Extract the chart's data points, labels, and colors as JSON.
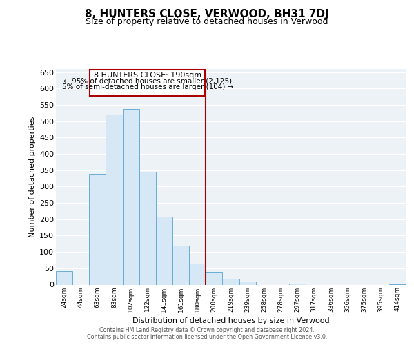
{
  "title": "8, HUNTERS CLOSE, VERWOOD, BH31 7DJ",
  "subtitle": "Size of property relative to detached houses in Verwood",
  "xlabel": "Distribution of detached houses by size in Verwood",
  "ylabel": "Number of detached properties",
  "bar_labels": [
    "24sqm",
    "44sqm",
    "63sqm",
    "83sqm",
    "102sqm",
    "122sqm",
    "141sqm",
    "161sqm",
    "180sqm",
    "200sqm",
    "219sqm",
    "239sqm",
    "258sqm",
    "278sqm",
    "297sqm",
    "317sqm",
    "336sqm",
    "356sqm",
    "375sqm",
    "395sqm",
    "414sqm"
  ],
  "bar_heights": [
    42,
    0,
    340,
    520,
    537,
    345,
    207,
    120,
    65,
    40,
    18,
    10,
    0,
    0,
    3,
    0,
    0,
    0,
    0,
    0,
    2
  ],
  "bar_color": "#d6e8f5",
  "bar_edge_color": "#6aadd5",
  "marker_line_color": "#aa0000",
  "annotation_title": "8 HUNTERS CLOSE: 190sqm",
  "annotation_line1": "← 95% of detached houses are smaller (2,125)",
  "annotation_line2": "5% of semi-detached houses are larger (104) →",
  "ylim": [
    0,
    660
  ],
  "yticks": [
    0,
    50,
    100,
    150,
    200,
    250,
    300,
    350,
    400,
    450,
    500,
    550,
    600,
    650
  ],
  "footer_line1": "Contains HM Land Registry data © Crown copyright and database right 2024.",
  "footer_line2": "Contains public sector information licensed under the Open Government Licence v3.0.",
  "background_color": "#edf2f7"
}
